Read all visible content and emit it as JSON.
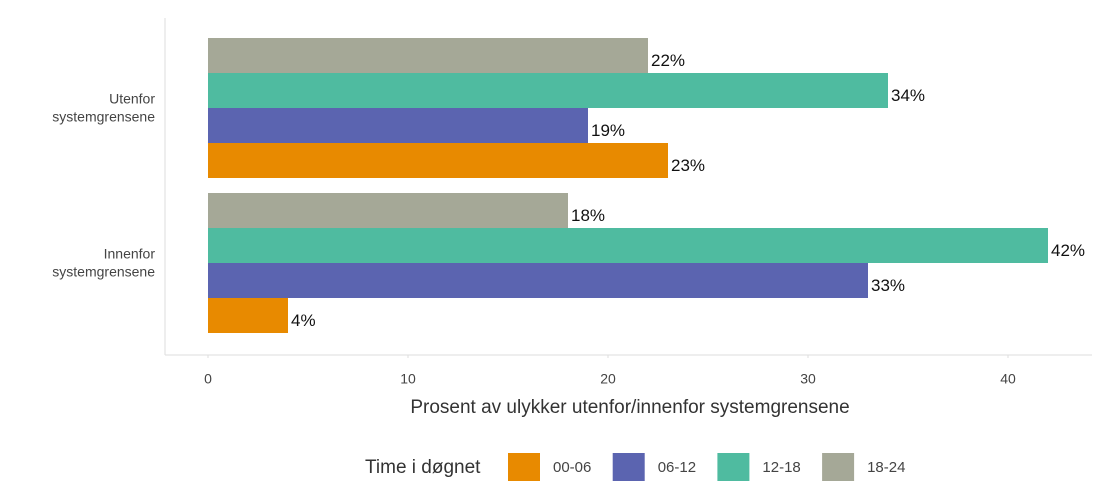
{
  "chart_data": {
    "type": "hbar",
    "xlabel": "Prosent av ulykker utenfor/innenfor systemgrensene",
    "categories": [
      [
        "Utenfor",
        "systemgrensene"
      ],
      [
        "Innenfor",
        "systemgrensene"
      ]
    ],
    "legend_title": "Time i døgnet",
    "series": [
      {
        "name": "00-06",
        "color": "#e88a00",
        "values": [
          23,
          4
        ],
        "value_labels": [
          "23%",
          "4%"
        ]
      },
      {
        "name": "06-12",
        "color": "#5b64b0",
        "values": [
          19,
          33
        ],
        "value_labels": [
          "19%",
          "33%"
        ]
      },
      {
        "name": "12-18",
        "color": "#4fbba0",
        "values": [
          34,
          42
        ],
        "value_labels": [
          "34%",
          "42%"
        ]
      },
      {
        "name": "18-24",
        "color": "#a5a897",
        "values": [
          22,
          18
        ],
        "value_labels": [
          "22%",
          "18%"
        ]
      }
    ],
    "xlim": [
      -2.15,
      44.2
    ],
    "xticks": [
      0,
      10,
      20,
      30,
      40
    ]
  }
}
